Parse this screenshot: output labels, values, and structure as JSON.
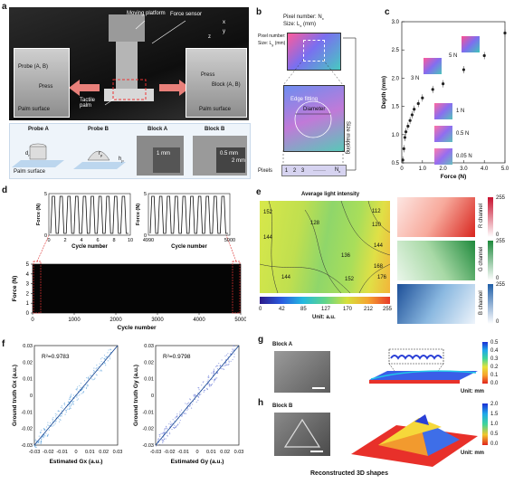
{
  "panels": {
    "a": {
      "label": "a",
      "callouts": [
        "Moving platform",
        "Force sensor",
        "Probe (A, B)",
        "Press",
        "Palm surface",
        "Tactile palm",
        "Block (A, B)",
        "Press",
        "Palm surface"
      ],
      "axes": {
        "x": "x",
        "y": "y",
        "z": "z"
      },
      "schematics": [
        {
          "title": "Probe A",
          "dim": "d",
          "dim_sub": "r",
          "surface": "Palm surface"
        },
        {
          "title": "Probe B",
          "dim": "r",
          "dim_sub": "p",
          "dim2": "h",
          "dim2_sub": "p"
        },
        {
          "title": "Block A",
          "scale": "1 mm"
        },
        {
          "title": "Block B",
          "scale": "0.5 mm",
          "scale2": "2 mm"
        }
      ]
    },
    "b": {
      "label": "b",
      "pixel_number": "Pixel number: N",
      "pixel_number_sub": "x",
      "size": "Size: L",
      "size_sub": "x",
      "size_unit": "(mm)",
      "pixel_number_y": "Pixel number: N",
      "pixel_number_y_sub": "y",
      "size_y": "Size: L",
      "size_y_sub": "y",
      "size_y_unit": "(mm)",
      "edge_fitting": "Edge fitting",
      "diameter": "Diameter",
      "size_mapping": "Size mapping",
      "pixels": "Pixels",
      "pixel_cells": [
        "1",
        "2",
        "3",
        "·······",
        "N"
      ],
      "pixel_last_sub": "x"
    },
    "c": {
      "label": "c",
      "annotations": [
        "5 N",
        "3 N",
        "1 N",
        "0.5 N",
        "0.05 N"
      ]
    },
    "d": {
      "label": "d",
      "main_x_label": "Cycle number",
      "main_y_label": "Force (N)",
      "inset1_x_label": "Cycle number",
      "inset1_y_label": "Force (N)",
      "inset2_x_label": "Cycle number",
      "inset2_y_label": "Force (N)"
    },
    "e": {
      "label": "e",
      "title": "Average light intensity",
      "unit": "Unit: a.u.",
      "contour_labels": [
        "152",
        "144",
        "128",
        "112",
        "120",
        "144",
        "136",
        "168",
        "176",
        "152",
        "144"
      ],
      "colorbar_ticks": [
        "0",
        "42",
        "85",
        "127",
        "170",
        "212",
        "255"
      ],
      "channels": [
        {
          "name": "R channel",
          "max": "255",
          "min": "0",
          "color": "#c8102e"
        },
        {
          "name": "G channel",
          "max": "255",
          "min": "0",
          "color": "#1e8a3c"
        },
        {
          "name": "B channel",
          "max": "255",
          "min": "0",
          "color": "#1f5fa8"
        }
      ]
    },
    "f": {
      "label": "f"
    },
    "g": {
      "label": "g",
      "title": "Block A",
      "unit": "Unit: mm",
      "colorbar_ticks": [
        "0.5",
        "0.4",
        "0.3",
        "0.2",
        "0.1",
        "0.0"
      ]
    },
    "h": {
      "label": "h",
      "title": "Block B",
      "unit": "Unit: mm",
      "colorbar_ticks": [
        "2.0",
        "1.5",
        "1.0",
        "0.5",
        "0.0"
      ],
      "caption": "Reconstructed 3D shapes"
    }
  },
  "chart_data": [
    {
      "id": "c",
      "type": "scatter",
      "xlabel": "Force (N)",
      "ylabel": "Depth (mm)",
      "xlim": [
        0,
        5.0
      ],
      "ylim": [
        0.5,
        3.0
      ],
      "xticks": [
        "0",
        "1.0",
        "2.0",
        "3.0",
        "4.0",
        "5.0"
      ],
      "yticks": [
        "0.5",
        "1.0",
        "1.5",
        "2.0",
        "2.5",
        "3.0"
      ],
      "x": [
        0.05,
        0.1,
        0.15,
        0.2,
        0.3,
        0.4,
        0.5,
        0.6,
        0.8,
        1.0,
        1.5,
        2.0,
        3.0,
        4.0,
        5.0
      ],
      "y": [
        0.55,
        0.75,
        0.95,
        1.05,
        1.15,
        1.25,
        1.35,
        1.45,
        1.55,
        1.65,
        1.8,
        1.9,
        2.15,
        2.4,
        2.8
      ]
    },
    {
      "id": "d",
      "type": "line",
      "xlabel": "Cycle number",
      "ylabel": "Force (N)",
      "xlim": [
        0,
        5000
      ],
      "ylim": [
        0,
        5
      ],
      "xticks": [
        "0",
        "1000",
        "2000",
        "3000",
        "4000",
        "5000"
      ],
      "yticks": [
        "0",
        "1",
        "2",
        "3",
        "4",
        "5"
      ],
      "amplitude": 5
    },
    {
      "id": "d-inset-1",
      "type": "line",
      "xlim": [
        0,
        10
      ],
      "ylim": [
        0,
        5
      ],
      "xticks": [
        "0",
        "2",
        "4",
        "6",
        "8",
        "10"
      ],
      "yticks": [
        "0",
        "5"
      ],
      "cycles": 10
    },
    {
      "id": "d-inset-2",
      "type": "line",
      "xlim": [
        4990,
        5000
      ],
      "ylim": [
        0,
        5
      ],
      "xticks": [
        "4990",
        "5000"
      ],
      "yticks": [
        "0",
        "5"
      ],
      "cycles": 10
    },
    {
      "id": "f-left",
      "type": "scatter",
      "xlabel": "Estimated G",
      "xlabel_sub": "x",
      "xlabel_unit": "(a.u.)",
      "ylabel": "Ground truth G",
      "ylabel_sub": "x",
      "ylabel_unit": "(a.u.)",
      "annotation": "R²=0.9783",
      "color": "#3c8fd6",
      "xlim": [
        -0.03,
        0.03
      ],
      "ylim": [
        -0.03,
        0.03
      ],
      "xticks": [
        "-0.03",
        "-0.01",
        "0.01",
        "0.03"
      ],
      "xticks_minor": [
        "-0.02",
        "0",
        "0.02"
      ],
      "yticks": [
        "-0.03",
        "-0.02",
        "-0.01",
        "0",
        "0.01",
        "0.02",
        "0.03"
      ]
    },
    {
      "id": "f-right",
      "type": "scatter",
      "xlabel": "Estimated G",
      "xlabel_sub": "y",
      "xlabel_unit": "(a.u.)",
      "ylabel": "Ground truth G",
      "ylabel_sub": "y",
      "ylabel_unit": "(a.u.)",
      "annotation": "R²=0.9798",
      "color": "#4a5fd0",
      "xlim": [
        -0.03,
        0.03
      ],
      "ylim": [
        -0.03,
        0.03
      ],
      "xticks": [
        "-0.03",
        "-0.01",
        "0.01",
        "0.03"
      ],
      "xticks_minor": [
        "-0.02",
        "0",
        "0.02"
      ],
      "yticks": [
        "-0.03",
        "-0.02",
        "-0.01",
        "0",
        "0.01",
        "0.02",
        "0.03"
      ]
    }
  ]
}
